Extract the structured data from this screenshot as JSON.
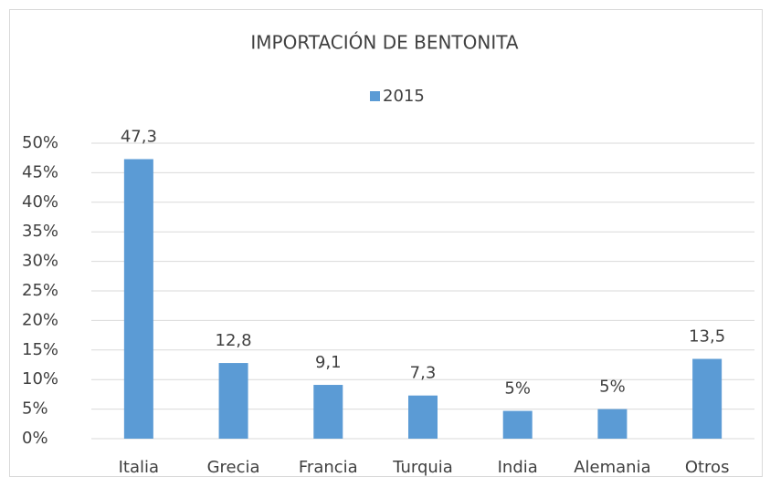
{
  "chart_data": {
    "type": "bar",
    "title": "IMPORTACIÓN DE BENTONITA",
    "categories": [
      "Italia",
      "Grecia",
      "Francia",
      "Turquia",
      "India",
      "Alemania",
      "Otros"
    ],
    "series": [
      {
        "name": "2015",
        "color": "#5b9bd5",
        "values": [
          47.3,
          12.8,
          9.1,
          7.3,
          4.7,
          5.0,
          13.5
        ],
        "value_labels": [
          "47,3",
          "12,8",
          "9,1",
          "7,3",
          "5%",
          "5%",
          "13,5"
        ]
      }
    ],
    "ylim": [
      0,
      50
    ],
    "yticks": [
      {
        "value": 0,
        "label": "0%"
      },
      {
        "value": 5,
        "label": "5%"
      },
      {
        "value": 10,
        "label": "10%"
      },
      {
        "value": 15,
        "label": "15%"
      },
      {
        "value": 20,
        "label": "20%"
      },
      {
        "value": 25,
        "label": "25%"
      },
      {
        "value": 30,
        "label": "30%"
      },
      {
        "value": 35,
        "label": "35%"
      },
      {
        "value": 40,
        "label": "40%"
      },
      {
        "value": 45,
        "label": "45%"
      },
      {
        "value": 50,
        "label": "50%"
      }
    ],
    "grid": true,
    "legend": "top"
  }
}
